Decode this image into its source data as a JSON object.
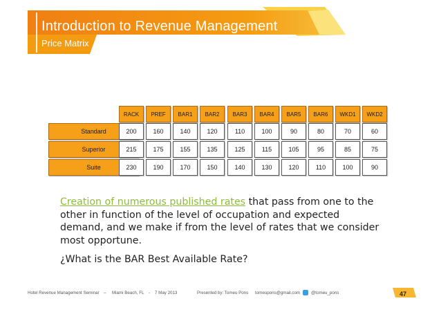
{
  "slide": {
    "title": "Introduction to Revenue Management",
    "subtitle": "Price Matrix"
  },
  "matrix": {
    "columns": [
      "RACK",
      "PREF",
      "BAR1",
      "BAR2",
      "BAR3",
      "BAR4",
      "BAR5",
      "BAR6",
      "WKD1",
      "WKD2"
    ],
    "rows": [
      {
        "label": "Standard",
        "values": [
          "200",
          "160",
          "140",
          "120",
          "110",
          "100",
          "90",
          "80",
          "70",
          "60"
        ]
      },
      {
        "label": "Superior",
        "values": [
          "215",
          "175",
          "155",
          "135",
          "125",
          "115",
          "105",
          "95",
          "85",
          "75"
        ]
      },
      {
        "label": "Suite",
        "values": [
          "230",
          "190",
          "170",
          "150",
          "140",
          "130",
          "120",
          "110",
          "100",
          "90"
        ]
      }
    ]
  },
  "body": {
    "link_text": "Creation of numerous published rates",
    "paragraph_rest": " that pass from one to the other in function of the level of occupation and expected demand, and we make if from the level of rates that we consider most opportune.",
    "question": "¿What is the BAR Best Available Rate?"
  },
  "footer": {
    "seminar": "Hotel Revenue Management Seminar",
    "location": "Miami Beach, FL",
    "date": "7 May 2013",
    "presenter": "Presented by:  Tomeu Pons",
    "email": "tomeupons@gmail.com",
    "twitter": "@tomeu_pons",
    "sep1": "–",
    "sep2": "-",
    "page": "47"
  },
  "colors": {
    "banner_orange": "#f39c12",
    "banner_yellow": "#f7c948",
    "cell_orange": "#f6a01a",
    "link_green": "#8cbd3a"
  }
}
